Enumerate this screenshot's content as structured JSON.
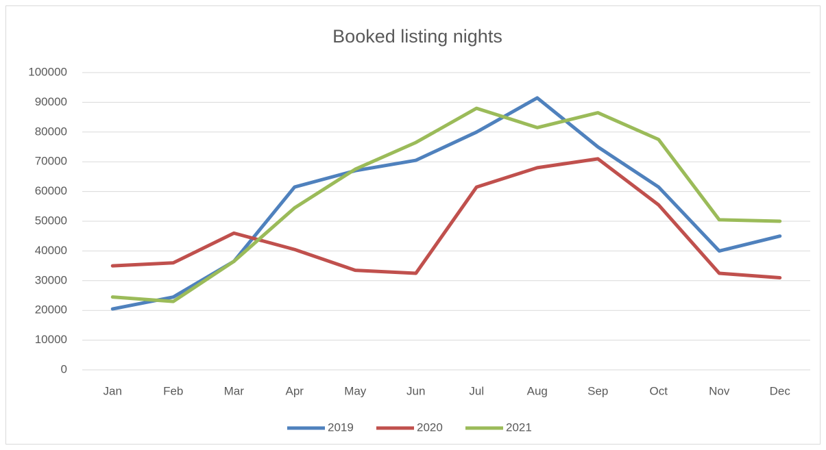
{
  "chart_data": {
    "type": "line",
    "title": "Booked listing nights",
    "categories": [
      "Jan",
      "Feb",
      "Mar",
      "Apr",
      "May",
      "Jun",
      "Jul",
      "Aug",
      "Sep",
      "Oct",
      "Nov",
      "Dec"
    ],
    "series": [
      {
        "name": "2019",
        "color": "#4f81bd",
        "values": [
          20500,
          24500,
          36500,
          61500,
          67000,
          70500,
          80000,
          91500,
          75000,
          61500,
          40000,
          45000
        ]
      },
      {
        "name": "2020",
        "color": "#c0504d",
        "values": [
          35000,
          36000,
          46000,
          40500,
          33500,
          32500,
          61500,
          68000,
          71000,
          55500,
          32500,
          31000
        ]
      },
      {
        "name": "2021",
        "color": "#9bbb59",
        "values": [
          24500,
          23000,
          36500,
          54500,
          67500,
          76500,
          88000,
          81500,
          86500,
          77500,
          50500,
          50000
        ]
      }
    ],
    "ylim": [
      0,
      100000
    ],
    "yticks": [
      0,
      10000,
      20000,
      30000,
      40000,
      50000,
      60000,
      70000,
      80000,
      90000,
      100000
    ],
    "grid": true,
    "legend": "bottom"
  }
}
